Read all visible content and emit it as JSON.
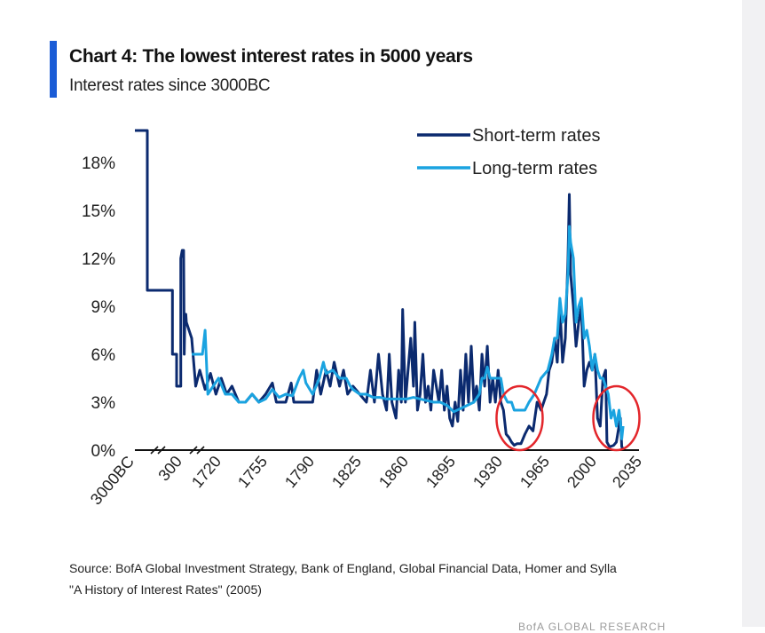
{
  "header": {
    "title": "Chart 4: The lowest interest rates in 5000 years",
    "subtitle": "Interest rates since 3000BC"
  },
  "source": {
    "line1": "Source:  BofA Global Investment Strategy,  Bank of England, Global Financial Data, Homer and Sylla",
    "line2": "\"A History of Interest Rates\" (2005)"
  },
  "footer": {
    "partial_text": "BofA GLOBAL RESEARCH"
  },
  "colors": {
    "accent": "#1a5cd6",
    "short_term": "#0b2a6f",
    "long_term": "#1aa3e0",
    "highlight_circle": "#e3262b",
    "axis": "#111111"
  },
  "chart_data": {
    "type": "line",
    "title": "The lowest interest rates in 5000 years",
    "xlabel": "",
    "ylabel": "",
    "ylim": [
      0,
      20
    ],
    "yticks": [
      0,
      3,
      6,
      9,
      12,
      15,
      18
    ],
    "ytick_labels": [
      "0%",
      "3%",
      "6%",
      "9%",
      "12%",
      "15%",
      "18%"
    ],
    "xtick_labels": [
      "3000BC",
      "300",
      "1720",
      "1755",
      "1790",
      "1825",
      "1860",
      "1895",
      "1930",
      "1965",
      "2000",
      "2035"
    ],
    "xtick_positions": [
      -3000,
      300,
      1720,
      1755,
      1790,
      1825,
      1860,
      1895,
      1930,
      1965,
      2000,
      2035
    ],
    "axis_breaks": [
      "between 3000BC and 300",
      "between 300 and 1720"
    ],
    "legend": {
      "placement": "top-right",
      "entries": [
        "Short-term rates",
        "Long-term rates"
      ]
    },
    "annotations": [
      {
        "type": "circle",
        "label": "low-rate period 1940s",
        "x_center": 1944,
        "y_center": 2
      },
      {
        "type": "circle",
        "label": "low-rate period 2010s",
        "x_center": 2016,
        "y_center": 2
      }
    ],
    "series": [
      {
        "name": "Short-term rates",
        "points": [
          [
            -3000,
            20
          ],
          [
            -2500,
            20
          ],
          [
            -2500,
            10
          ],
          [
            -1500,
            10
          ],
          [
            -700,
            10
          ],
          [
            -700,
            6
          ],
          [
            -400,
            6
          ],
          [
            -400,
            4
          ],
          [
            -100,
            4
          ],
          [
            -100,
            12
          ],
          [
            0,
            12.5
          ],
          [
            100,
            12.5
          ],
          [
            150,
            6
          ],
          [
            200,
            8.5
          ],
          [
            260,
            8.5
          ],
          [
            300,
            8
          ],
          [
            1700,
            7
          ],
          [
            1703,
            4
          ],
          [
            1706,
            5
          ],
          [
            1710,
            3.8
          ],
          [
            1714,
            4.8
          ],
          [
            1718,
            3.5
          ],
          [
            1722,
            4.5
          ],
          [
            1726,
            3.5
          ],
          [
            1730,
            4
          ],
          [
            1735,
            3
          ],
          [
            1740,
            3
          ],
          [
            1745,
            3.5
          ],
          [
            1750,
            3
          ],
          [
            1755,
            3.5
          ],
          [
            1760,
            4.2
          ],
          [
            1763,
            3
          ],
          [
            1766,
            3
          ],
          [
            1770,
            3
          ],
          [
            1774,
            4.2
          ],
          [
            1776,
            3
          ],
          [
            1780,
            3
          ],
          [
            1785,
            3
          ],
          [
            1790,
            3
          ],
          [
            1793,
            5
          ],
          [
            1796,
            3.5
          ],
          [
            1800,
            5
          ],
          [
            1803,
            4
          ],
          [
            1806,
            5.5
          ],
          [
            1810,
            4
          ],
          [
            1813,
            5
          ],
          [
            1816,
            3.5
          ],
          [
            1820,
            4
          ],
          [
            1825,
            3.5
          ],
          [
            1830,
            3
          ],
          [
            1833,
            5
          ],
          [
            1836,
            3
          ],
          [
            1839,
            6
          ],
          [
            1842,
            3.5
          ],
          [
            1845,
            2.5
          ],
          [
            1847,
            6
          ],
          [
            1849,
            3
          ],
          [
            1852,
            2
          ],
          [
            1854,
            5
          ],
          [
            1856,
            3
          ],
          [
            1857,
            8.8
          ],
          [
            1859,
            3
          ],
          [
            1861,
            5
          ],
          [
            1863,
            7
          ],
          [
            1865,
            4
          ],
          [
            1866,
            8
          ],
          [
            1868,
            2.5
          ],
          [
            1870,
            3.5
          ],
          [
            1872,
            6
          ],
          [
            1874,
            3
          ],
          [
            1876,
            4
          ],
          [
            1878,
            2.5
          ],
          [
            1880,
            5
          ],
          [
            1882,
            4
          ],
          [
            1884,
            3
          ],
          [
            1886,
            5
          ],
          [
            1888,
            2.5
          ],
          [
            1890,
            4
          ],
          [
            1892,
            2
          ],
          [
            1894,
            1.5
          ],
          [
            1896,
            3
          ],
          [
            1898,
            1.8
          ],
          [
            1900,
            5
          ],
          [
            1902,
            2.5
          ],
          [
            1904,
            6
          ],
          [
            1906,
            3
          ],
          [
            1908,
            6.5
          ],
          [
            1910,
            3
          ],
          [
            1912,
            4
          ],
          [
            1914,
            2.5
          ],
          [
            1916,
            6
          ],
          [
            1918,
            4
          ],
          [
            1920,
            6.5
          ],
          [
            1922,
            3
          ],
          [
            1924,
            4.5
          ],
          [
            1926,
            3
          ],
          [
            1928,
            5
          ],
          [
            1930,
            3
          ],
          [
            1932,
            2.5
          ],
          [
            1934,
            1
          ],
          [
            1936,
            0.8
          ],
          [
            1938,
            0.5
          ],
          [
            1940,
            0.3
          ],
          [
            1942,
            0.4
          ],
          [
            1945,
            0.4
          ],
          [
            1948,
            1
          ],
          [
            1951,
            1.5
          ],
          [
            1954,
            1.2
          ],
          [
            1957,
            3
          ],
          [
            1960,
            2.5
          ],
          [
            1962,
            3
          ],
          [
            1964,
            3.5
          ],
          [
            1966,
            5
          ],
          [
            1968,
            5.5
          ],
          [
            1970,
            7
          ],
          [
            1972,
            5.5
          ],
          [
            1974,
            9
          ],
          [
            1976,
            5.5
          ],
          [
            1978,
            7
          ],
          [
            1980,
            12
          ],
          [
            1981,
            16
          ],
          [
            1982,
            11
          ],
          [
            1984,
            9
          ],
          [
            1986,
            6.5
          ],
          [
            1988,
            8
          ],
          [
            1990,
            9
          ],
          [
            1992,
            4
          ],
          [
            1994,
            5
          ],
          [
            1996,
            5.5
          ],
          [
            1998,
            5
          ],
          [
            2000,
            6
          ],
          [
            2002,
            2
          ],
          [
            2004,
            1.5
          ],
          [
            2006,
            4.5
          ],
          [
            2008,
            5
          ],
          [
            2009,
            0.5
          ],
          [
            2011,
            0.2
          ],
          [
            2014,
            0.3
          ],
          [
            2016,
            0.5
          ],
          [
            2018,
            1.5
          ],
          [
            2019,
            2
          ],
          [
            2020,
            0.2
          ],
          [
            2021,
            0.1
          ]
        ]
      },
      {
        "name": "Long-term rates",
        "points": [
          [
            1700,
            6
          ],
          [
            1704,
            6
          ],
          [
            1708,
            6
          ],
          [
            1710,
            7.5
          ],
          [
            1712,
            3.5
          ],
          [
            1716,
            4
          ],
          [
            1720,
            4.5
          ],
          [
            1725,
            3.5
          ],
          [
            1730,
            3.5
          ],
          [
            1735,
            3
          ],
          [
            1740,
            3
          ],
          [
            1745,
            3.5
          ],
          [
            1750,
            3
          ],
          [
            1755,
            3.2
          ],
          [
            1760,
            3.8
          ],
          [
            1765,
            3.3
          ],
          [
            1770,
            3.5
          ],
          [
            1775,
            3.4
          ],
          [
            1780,
            4.5
          ],
          [
            1783,
            5
          ],
          [
            1785,
            4.2
          ],
          [
            1790,
            3.5
          ],
          [
            1795,
            4.5
          ],
          [
            1798,
            5.5
          ],
          [
            1800,
            4.8
          ],
          [
            1805,
            5
          ],
          [
            1810,
            4.5
          ],
          [
            1815,
            4.5
          ],
          [
            1818,
            4
          ],
          [
            1820,
            3.8
          ],
          [
            1825,
            3.5
          ],
          [
            1830,
            3.5
          ],
          [
            1835,
            3.3
          ],
          [
            1840,
            3.3
          ],
          [
            1845,
            3.2
          ],
          [
            1850,
            3.2
          ],
          [
            1855,
            3.2
          ],
          [
            1860,
            3.2
          ],
          [
            1865,
            3.3
          ],
          [
            1870,
            3.2
          ],
          [
            1875,
            3.1
          ],
          [
            1880,
            3
          ],
          [
            1885,
            3
          ],
          [
            1890,
            2.8
          ],
          [
            1895,
            2.4
          ],
          [
            1900,
            2.6
          ],
          [
            1905,
            2.8
          ],
          [
            1910,
            3
          ],
          [
            1914,
            3.5
          ],
          [
            1916,
            4.5
          ],
          [
            1918,
            4.5
          ],
          [
            1920,
            5.2
          ],
          [
            1922,
            4.5
          ],
          [
            1925,
            4.5
          ],
          [
            1928,
            4.5
          ],
          [
            1930,
            4.5
          ],
          [
            1932,
            3.5
          ],
          [
            1935,
            3
          ],
          [
            1938,
            3
          ],
          [
            1940,
            2.5
          ],
          [
            1942,
            2.5
          ],
          [
            1945,
            2.5
          ],
          [
            1948,
            2.5
          ],
          [
            1951,
            3
          ],
          [
            1955,
            3.5
          ],
          [
            1960,
            4.5
          ],
          [
            1965,
            5
          ],
          [
            1968,
            6
          ],
          [
            1970,
            7
          ],
          [
            1972,
            7
          ],
          [
            1974,
            9.5
          ],
          [
            1976,
            8
          ],
          [
            1978,
            8.5
          ],
          [
            1980,
            11
          ],
          [
            1981,
            14
          ],
          [
            1982,
            13
          ],
          [
            1984,
            12
          ],
          [
            1986,
            8
          ],
          [
            1988,
            9
          ],
          [
            1990,
            9.5
          ],
          [
            1992,
            7
          ],
          [
            1994,
            7.5
          ],
          [
            1996,
            6.5
          ],
          [
            1998,
            5
          ],
          [
            2000,
            6
          ],
          [
            2002,
            5
          ],
          [
            2004,
            4.5
          ],
          [
            2006,
            4.5
          ],
          [
            2008,
            4
          ],
          [
            2010,
            3.5
          ],
          [
            2012,
            2
          ],
          [
            2014,
            2.5
          ],
          [
            2016,
            1.5
          ],
          [
            2018,
            2.5
          ],
          [
            2019,
            1.8
          ],
          [
            2020,
            0.7
          ],
          [
            2021,
            1.5
          ]
        ]
      }
    ]
  }
}
